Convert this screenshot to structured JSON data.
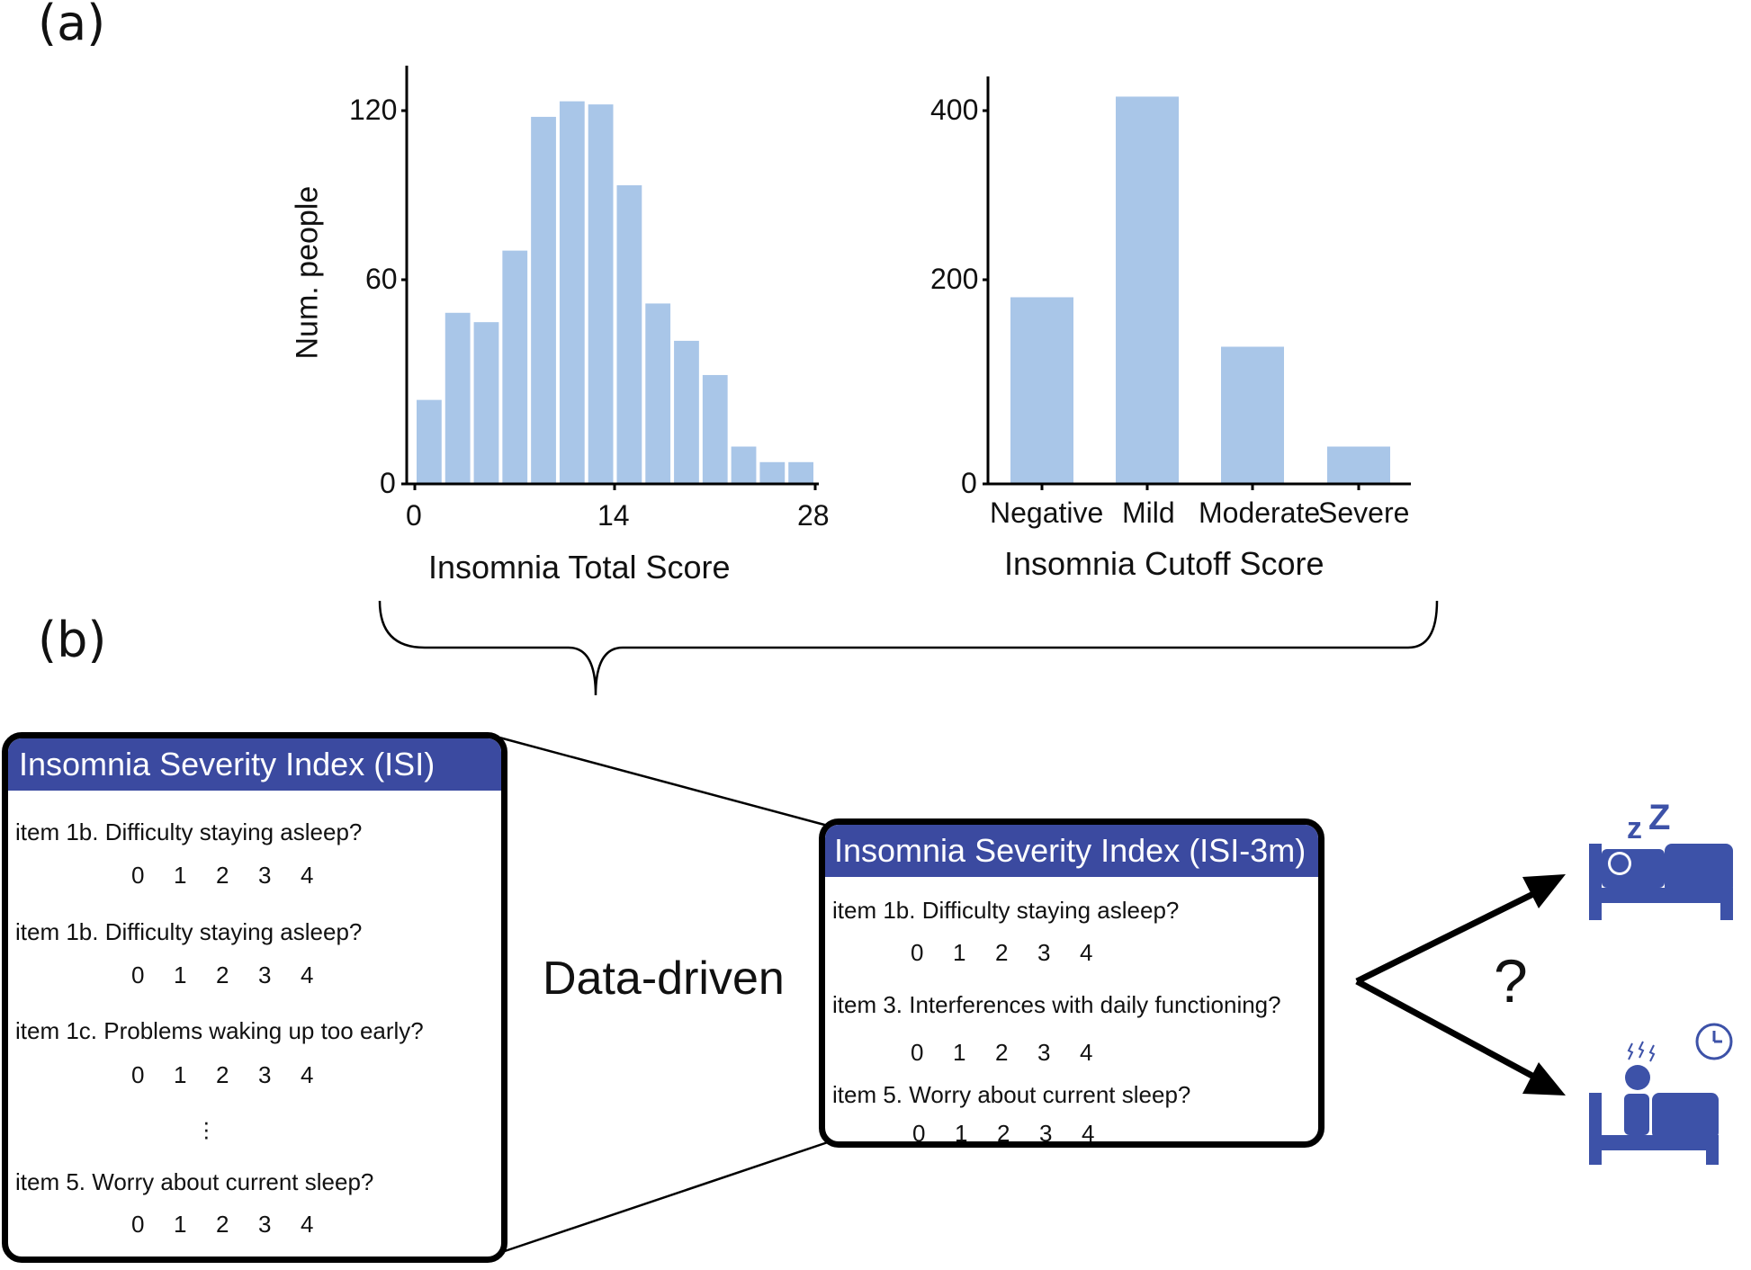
{
  "panel_a_label": "(a)",
  "panel_b_label": "(b)",
  "chart_data": [
    {
      "type": "bar",
      "xlabel": "Insomnia Total Score",
      "ylabel": "Num. people",
      "x_ticks": [
        "0",
        "14",
        "28"
      ],
      "y_ticks": [
        "0",
        "60",
        "120"
      ],
      "ylim": [
        0,
        135
      ],
      "xlim": [
        0,
        28
      ],
      "bins": [
        {
          "x0": 0,
          "x1": 2,
          "value": 27
        },
        {
          "x0": 2,
          "x1": 4,
          "value": 55
        },
        {
          "x0": 4,
          "x1": 6,
          "value": 52
        },
        {
          "x0": 6,
          "x1": 8,
          "value": 75
        },
        {
          "x0": 8,
          "x1": 10,
          "value": 118
        },
        {
          "x0": 10,
          "x1": 12,
          "value": 123
        },
        {
          "x0": 12,
          "x1": 14,
          "value": 122
        },
        {
          "x0": 14,
          "x1": 16,
          "value": 96
        },
        {
          "x0": 16,
          "x1": 18,
          "value": 58
        },
        {
          "x0": 18,
          "x1": 20,
          "value": 46
        },
        {
          "x0": 20,
          "x1": 22,
          "value": 35
        },
        {
          "x0": 22,
          "x1": 24,
          "value": 12
        },
        {
          "x0": 24,
          "x1": 26,
          "value": 7
        },
        {
          "x0": 26,
          "x1": 28,
          "value": 7
        }
      ],
      "color": "#a9c6e8"
    },
    {
      "type": "bar",
      "xlabel": "Insomnia Cutoff Score",
      "ylabel": "",
      "categories": [
        "Negative",
        "Mild",
        "Moderate",
        "Severe"
      ],
      "values": [
        200,
        415,
        147,
        40
      ],
      "y_ticks": [
        "0",
        "200",
        "400"
      ],
      "ylim": [
        0,
        440
      ],
      "color": "#a9c6e8"
    }
  ],
  "isi": {
    "title": "Insomnia Severity Index (ISI)",
    "items": [
      {
        "question": "item 1b. Difficulty staying asleep?",
        "scale": [
          "0",
          "1",
          "2",
          "3",
          "4"
        ]
      },
      {
        "question": "item 1b. Difficulty staying asleep?",
        "scale": [
          "0",
          "1",
          "2",
          "3",
          "4"
        ]
      },
      {
        "question": "item 1c. Problems waking up too early?",
        "scale": [
          "0",
          "1",
          "2",
          "3",
          "4"
        ]
      },
      {
        "question": "item 5. Worry about current sleep?",
        "scale": [
          "0",
          "1",
          "2",
          "3",
          "4"
        ]
      }
    ]
  },
  "isi3m": {
    "title": "Insomnia Severity Index (ISI-3m)",
    "items": [
      {
        "question": "item 1b. Difficulty staying asleep?",
        "scale": [
          "0",
          "1",
          "2",
          "3",
          "4"
        ]
      },
      {
        "question": "item 3. Interferences with daily functioning?",
        "scale": [
          "0",
          "1",
          "2",
          "3",
          "4"
        ]
      },
      {
        "question": "item 5. Worry about current sleep?",
        "scale": [
          "0",
          "1",
          "2",
          "3",
          "4"
        ]
      }
    ]
  },
  "data_driven_label": "Data-driven",
  "question_mark": "?",
  "icon_color": "#3d52a8",
  "icons": [
    "sleeping-in-bed-icon",
    "awake-in-bed-icon",
    "clock-icon",
    "arrow-icon"
  ]
}
